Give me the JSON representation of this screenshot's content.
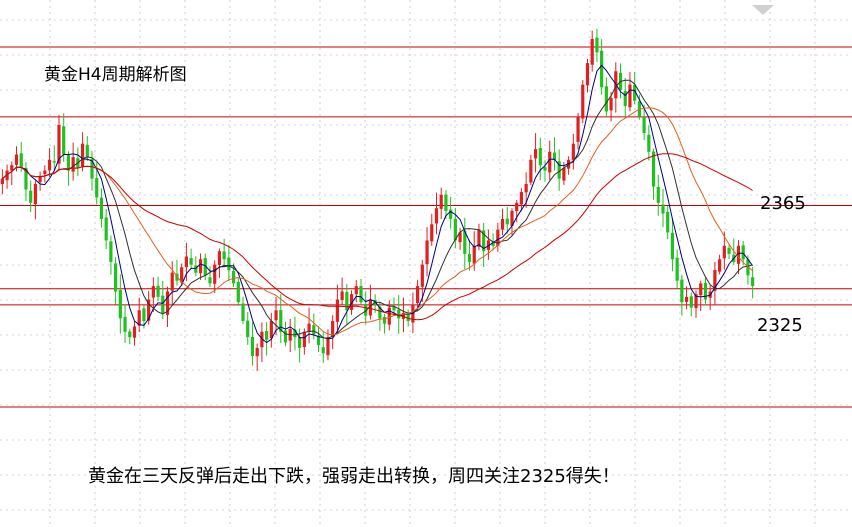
{
  "title": "黄金H4周期解析图",
  "caption": "黄金在三天反弹后走出下跌，强弱走出转换，周四关注2325得失！",
  "colors": {
    "up": "#e02020",
    "down": "#20c020",
    "hline": "#cc0000",
    "ma_short": "#000080",
    "ma_mid": "#e06020",
    "ma_long": "#cc0000",
    "grid": "#b0b0b0"
  },
  "chart_data": {
    "type": "candlestick",
    "symbol": "XAUUSD",
    "timeframe": "H4",
    "ylim": [
      2295,
      2430
    ],
    "levels": [
      {
        "label": "2365",
        "value": 2365
      },
      {
        "label": "2325",
        "value": 2325
      }
    ],
    "horizontal_lines": [
      2424,
      2398,
      2365,
      2334,
      2328,
      2290
    ],
    "closes": [
      2375,
      2378,
      2380,
      2384,
      2379,
      2371,
      2366,
      2373,
      2376,
      2378,
      2382,
      2381,
      2395,
      2384,
      2378,
      2383,
      2379,
      2388,
      2383,
      2375,
      2368,
      2360,
      2352,
      2344,
      2333,
      2323,
      2318,
      2316,
      2320,
      2326,
      2322,
      2330,
      2335,
      2331,
      2325,
      2333,
      2340,
      2337,
      2342,
      2346,
      2343,
      2340,
      2345,
      2339,
      2336,
      2343,
      2348,
      2345,
      2341,
      2336,
      2329,
      2322,
      2316,
      2309,
      2312,
      2318,
      2315,
      2322,
      2326,
      2318,
      2314,
      2319,
      2316,
      2312,
      2318,
      2321,
      2317,
      2313,
      2310,
      2316,
      2322,
      2330,
      2333,
      2326,
      2332,
      2335,
      2329,
      2324,
      2330,
      2328,
      2323,
      2321,
      2327,
      2326,
      2323,
      2325,
      2322,
      2328,
      2335,
      2343,
      2352,
      2358,
      2364,
      2369,
      2363,
      2360,
      2352,
      2355,
      2347,
      2344,
      2350,
      2356,
      2348,
      2352,
      2350,
      2356,
      2360,
      2358,
      2363,
      2366,
      2370,
      2373,
      2382,
      2386,
      2380,
      2378,
      2385,
      2382,
      2375,
      2379,
      2382,
      2388,
      2398,
      2410,
      2418,
      2427,
      2422,
      2409,
      2400,
      2405,
      2415,
      2408,
      2402,
      2410,
      2404,
      2398,
      2392,
      2385,
      2372,
      2366,
      2362,
      2355,
      2345,
      2337,
      2329,
      2331,
      2327,
      2332,
      2336,
      2330,
      2333,
      2341,
      2345,
      2350,
      2347,
      2344,
      2350,
      2345,
      2339,
      2335
    ]
  }
}
